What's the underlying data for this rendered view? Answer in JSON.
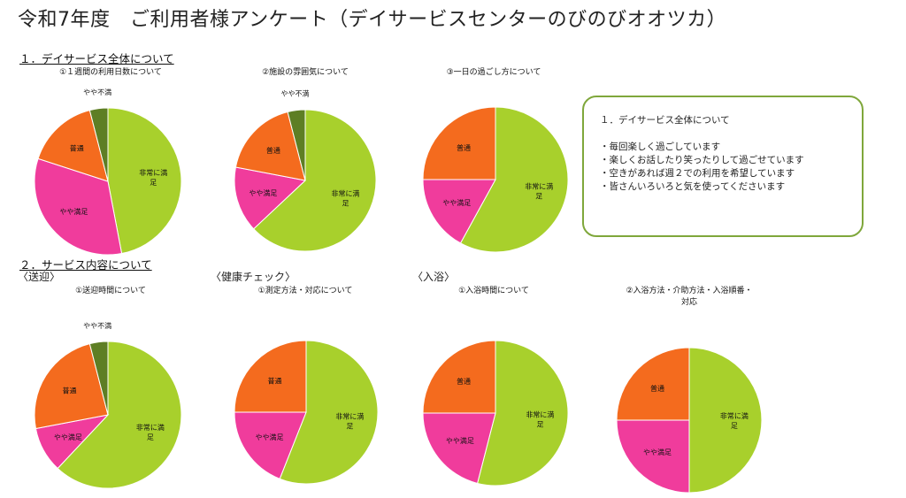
{
  "page": {
    "title": "令和7年度　ご利用者様アンケート（デイサービスセンターのびのびオオツカ）"
  },
  "sections": {
    "overall": "１．デイサービス全体について",
    "service": "２．サービス内容について",
    "transport": "〈送迎〉",
    "health": "〈健康チェック〉",
    "bath": "〈入浴〉"
  },
  "comment_box": {
    "title": "１．デイサービス全体について",
    "lines": [
      "・毎回楽しく過ごしています",
      "・楽しくお話したり笑ったりして過ごせています",
      "・空きがあれば週２での利用を希望しています",
      "・皆さんいろいろと気を使ってくださいます"
    ]
  },
  "colors": {
    "very_satisfied": "#a8d02c",
    "somewhat_satisfied": "#f03c9c",
    "average": "#f46b1e",
    "somewhat_dissatisfied": "#5e7e24",
    "box_border": "#7fa73b"
  },
  "chart_data": [
    {
      "type": "pie",
      "title": "①１週間の利用日数について",
      "slices": [
        {
          "label": "非常に満足",
          "value": 47,
          "color": "#a8d02c"
        },
        {
          "label": "やや満足",
          "value": 33,
          "color": "#f03c9c"
        },
        {
          "label": "普通",
          "value": 16,
          "color": "#f46b1e"
        },
        {
          "label": "やや不満",
          "value": 4,
          "color": "#5e7e24"
        }
      ]
    },
    {
      "type": "pie",
      "title": "②施設の雰囲気について",
      "slices": [
        {
          "label": "非常に満足",
          "value": 63,
          "color": "#a8d02c"
        },
        {
          "label": "やや満足",
          "value": 15,
          "color": "#f03c9c"
        },
        {
          "label": "普通",
          "value": 18,
          "color": "#f46b1e"
        },
        {
          "label": "やや不満",
          "value": 4,
          "color": "#5e7e24"
        }
      ]
    },
    {
      "type": "pie",
      "title": "③一日の過ごし方について",
      "slices": [
        {
          "label": "非常に満足",
          "value": 58,
          "color": "#a8d02c"
        },
        {
          "label": "やや満足",
          "value": 17,
          "color": "#f03c9c"
        },
        {
          "label": "普通",
          "value": 25,
          "color": "#f46b1e"
        }
      ]
    },
    {
      "type": "pie",
      "title": "①送迎時間について",
      "slices": [
        {
          "label": "非常に満足",
          "value": 62,
          "color": "#a8d02c"
        },
        {
          "label": "やや満足",
          "value": 10,
          "color": "#f03c9c"
        },
        {
          "label": "普通",
          "value": 24,
          "color": "#f46b1e"
        },
        {
          "label": "やや不満",
          "value": 4,
          "color": "#5e7e24"
        }
      ]
    },
    {
      "type": "pie",
      "title": "①測定方法・対応について",
      "slices": [
        {
          "label": "非常に満足",
          "value": 56,
          "color": "#a8d02c"
        },
        {
          "label": "やや満足",
          "value": 19,
          "color": "#f03c9c"
        },
        {
          "label": "普通",
          "value": 25,
          "color": "#f46b1e"
        }
      ]
    },
    {
      "type": "pie",
      "title": "①入浴時間について",
      "slices": [
        {
          "label": "非常に満足",
          "value": 54,
          "color": "#a8d02c"
        },
        {
          "label": "やや満足",
          "value": 21,
          "color": "#f03c9c"
        },
        {
          "label": "普通",
          "value": 25,
          "color": "#f46b1e"
        }
      ]
    },
    {
      "type": "pie",
      "title": "②入浴方法・介助方法・入浴順番・対応",
      "slices": [
        {
          "label": "非常に満足",
          "value": 50,
          "color": "#a8d02c"
        },
        {
          "label": "やや満足",
          "value": 25,
          "color": "#f03c9c"
        },
        {
          "label": "普通",
          "value": 25,
          "color": "#f46b1e"
        }
      ]
    }
  ]
}
